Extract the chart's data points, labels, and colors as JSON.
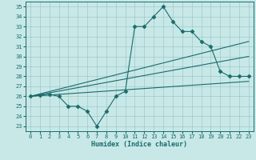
{
  "xlabel": "Humidex (Indice chaleur)",
  "background_color": "#c8e8e8",
  "grid_color": "#a0c8c8",
  "line_color": "#1a6b6b",
  "xlim": [
    -0.5,
    23.5
  ],
  "ylim": [
    22.5,
    35.5
  ],
  "yticks": [
    23,
    24,
    25,
    26,
    27,
    28,
    29,
    30,
    31,
    32,
    33,
    34,
    35
  ],
  "xticks": [
    0,
    1,
    2,
    3,
    4,
    5,
    6,
    7,
    8,
    9,
    10,
    11,
    12,
    13,
    14,
    15,
    16,
    17,
    18,
    19,
    20,
    21,
    22,
    23
  ],
  "series": [
    {
      "x": [
        0,
        1,
        2,
        3,
        4,
        5,
        6,
        7,
        8,
        9,
        10,
        11,
        12,
        13,
        14,
        15,
        16,
        17,
        18,
        19,
        20,
        21,
        22,
        23
      ],
      "y": [
        26,
        26.1,
        26.2,
        26.0,
        25.0,
        25.0,
        24.5,
        23.0,
        24.5,
        26.0,
        26.5,
        33.0,
        33.0,
        34.0,
        35.0,
        33.5,
        32.5,
        32.5,
        31.5,
        31.0,
        28.5,
        28.0,
        28.0,
        28.0
      ],
      "marker": "D",
      "markersize": 2.5
    },
    {
      "x": [
        0,
        23
      ],
      "y": [
        26.0,
        31.5
      ]
    },
    {
      "x": [
        0,
        23
      ],
      "y": [
        26.0,
        30.0
      ]
    },
    {
      "x": [
        0,
        23
      ],
      "y": [
        26.0,
        27.5
      ]
    }
  ]
}
